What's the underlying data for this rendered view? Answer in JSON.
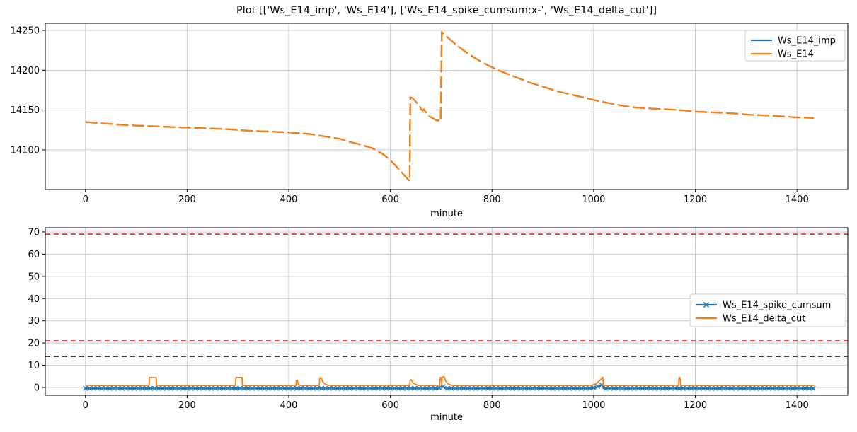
{
  "title": "Plot [['Ws_E14_imp', 'Ws_E14'], ['Ws_E14_spike_cumsum:x-', 'Ws_E14_delta_cut']]",
  "colors": {
    "blue": "#1f77b4",
    "orange": "#ff7f0e",
    "red": "#ee1111",
    "black": "#000000",
    "grid": "#cccccc",
    "spine": "#000000",
    "legend_border": "#cccccc",
    "legend_bg": "#ffffff"
  },
  "chart_data": [
    {
      "type": "line",
      "title": "",
      "xlabel": "minute",
      "ylabel": "",
      "xlim": [
        -79,
        1500
      ],
      "ylim": [
        14050.2,
        14258.9
      ],
      "xticks": [
        0,
        200,
        400,
        600,
        800,
        1000,
        1200,
        1400
      ],
      "yticks": [
        14100,
        14150,
        14200,
        14250
      ],
      "grid": true,
      "legend_position": "upper right",
      "legend": [
        {
          "label": "Ws_E14_imp",
          "color": "#1f77b4",
          "marker": null
        },
        {
          "label": "Ws_E14",
          "color": "#ff7f0e",
          "marker": null
        }
      ],
      "series": [
        {
          "name": "Ws_E14_imp",
          "color": "#1f77b4",
          "width": 2.2,
          "dash": "17 5",
          "same_as": "Ws_E14",
          "points": []
        },
        {
          "name": "Ws_E14",
          "color": "#ff7f0e",
          "width": 2.2,
          "dash": "17 5",
          "points": [
            [
              0,
              14135
            ],
            [
              40,
              14133
            ],
            [
              80,
              14131
            ],
            [
              120,
              14130
            ],
            [
              160,
              14129
            ],
            [
              200,
              14128
            ],
            [
              240,
              14127
            ],
            [
              280,
              14126
            ],
            [
              320,
              14124
            ],
            [
              360,
              14123
            ],
            [
              400,
              14122
            ],
            [
              440,
              14120
            ],
            [
              470,
              14117
            ],
            [
              500,
              14114
            ],
            [
              520,
              14110
            ],
            [
              545,
              14106
            ],
            [
              565,
              14102
            ],
            [
              585,
              14095
            ],
            [
              600,
              14087
            ],
            [
              612,
              14079
            ],
            [
              622,
              14072
            ],
            [
              630,
              14066
            ],
            [
              636,
              14062
            ],
            [
              638,
              14061
            ],
            [
              639,
              14166
            ],
            [
              643,
              14165
            ],
            [
              648,
              14162
            ],
            [
              655,
              14157
            ],
            [
              660,
              14152
            ],
            [
              663,
              14149
            ],
            [
              666,
              14151
            ],
            [
              670,
              14147
            ],
            [
              675,
              14143
            ],
            [
              680,
              14141
            ],
            [
              685,
              14139
            ],
            [
              691,
              14137
            ],
            [
              696,
              14137
            ],
            [
              699,
              14136
            ],
            [
              701,
              14248
            ],
            [
              706,
              14245
            ],
            [
              713,
              14241
            ],
            [
              722,
              14236
            ],
            [
              733,
              14230
            ],
            [
              746,
              14224
            ],
            [
              760,
              14218
            ],
            [
              775,
              14212
            ],
            [
              793,
              14206
            ],
            [
              812,
              14200
            ],
            [
              832,
              14195
            ],
            [
              852,
              14190
            ],
            [
              872,
              14185
            ],
            [
              892,
              14181
            ],
            [
              912,
              14177
            ],
            [
              932,
              14173
            ],
            [
              952,
              14170
            ],
            [
              972,
              14167
            ],
            [
              992,
              14164
            ],
            [
              1012,
              14161
            ],
            [
              1035,
              14158
            ],
            [
              1060,
              14155
            ],
            [
              1085,
              14153
            ],
            [
              1110,
              14152
            ],
            [
              1140,
              14151
            ],
            [
              1170,
              14150
            ],
            [
              1200,
              14148
            ],
            [
              1235,
              14147
            ],
            [
              1270,
              14146
            ],
            [
              1310,
              14144
            ],
            [
              1350,
              14143
            ],
            [
              1395,
              14141
            ],
            [
              1433,
              14140
            ]
          ]
        }
      ]
    },
    {
      "type": "line",
      "title": "",
      "xlabel": "minute",
      "ylabel": "",
      "xlim": [
        -79,
        1500
      ],
      "ylim": [
        -3.5,
        71.9
      ],
      "xticks": [
        0,
        200,
        400,
        600,
        800,
        1000,
        1200,
        1400
      ],
      "yticks": [
        0,
        10,
        20,
        30,
        40,
        50,
        60,
        70
      ],
      "grid": true,
      "legend_position": "center right",
      "legend": [
        {
          "label": "Ws_E14_spike_cumsum",
          "color": "#1f77b4",
          "marker": "x"
        },
        {
          "label": "Ws_E14_delta_cut",
          "color": "#ff7f0e",
          "marker": null
        }
      ],
      "hlines": [
        {
          "y": 69,
          "color": "#ee1111",
          "dash": "7 5",
          "width": 1.6
        },
        {
          "y": 21,
          "color": "#ee1111",
          "dash": "7 5",
          "width": 1.6
        },
        {
          "y": 14,
          "color": "#000000",
          "dash": "7 5",
          "width": 1.6
        }
      ],
      "series": [
        {
          "name": "Ws_E14_spike_cumsum",
          "color": "#1f77b4",
          "width": 2.2,
          "marker": "x",
          "marker_every": 8,
          "marker_size": 3,
          "points": [
            [
              0,
              -0.4
            ],
            [
              695,
              -0.4
            ],
            [
              699,
              0.4
            ],
            [
              704,
              0.4
            ],
            [
              708,
              -0.4
            ],
            [
              994,
              -0.4
            ],
            [
              1003,
              0.0
            ],
            [
              1010,
              0.6
            ],
            [
              1016,
              1.2
            ],
            [
              1018,
              1.3
            ],
            [
              1019,
              -0.4
            ],
            [
              1434,
              -0.4
            ]
          ]
        },
        {
          "name": "Ws_E14_delta_cut",
          "color": "#ff7f0e",
          "width": 1.8,
          "points": [
            [
              0,
              0.9
            ],
            [
              125,
              0.9
            ],
            [
              126,
              4.5
            ],
            [
              139,
              4.5
            ],
            [
              140,
              0.9
            ],
            [
              295,
              0.9
            ],
            [
              296,
              4.5
            ],
            [
              308,
              4.5
            ],
            [
              309,
              0.9
            ],
            [
              414,
              0.9
            ],
            [
              415,
              3.2
            ],
            [
              417,
              3.2
            ],
            [
              419,
              1.4
            ],
            [
              422,
              0.9
            ],
            [
              460,
              0.9
            ],
            [
              461,
              4.3
            ],
            [
              464,
              4.3
            ],
            [
              467,
              2.5
            ],
            [
              472,
              1.5
            ],
            [
              478,
              1.0
            ],
            [
              483,
              0.9
            ],
            [
              638,
              0.9
            ],
            [
              639,
              3.5
            ],
            [
              641,
              3.5
            ],
            [
              645,
              2.0
            ],
            [
              650,
              1.3
            ],
            [
              656,
              0.9
            ],
            [
              697,
              0.9
            ],
            [
              698,
              4.5
            ],
            [
              700,
              4.5
            ],
            [
              701,
              1.4
            ],
            [
              702,
              4.7
            ],
            [
              706,
              4.7
            ],
            [
              709,
              2.8
            ],
            [
              713,
              1.7
            ],
            [
              719,
              1.1
            ],
            [
              725,
              0.9
            ],
            [
              995,
              0.9
            ],
            [
              1002,
              1.4
            ],
            [
              1008,
              2.3
            ],
            [
              1013,
              3.4
            ],
            [
              1017,
              4.5
            ],
            [
              1018,
              4.6
            ],
            [
              1019,
              0.9
            ],
            [
              1167,
              0.9
            ],
            [
              1168,
              4.5
            ],
            [
              1170,
              4.5
            ],
            [
              1171,
              0.9
            ],
            [
              1434,
              0.9
            ]
          ]
        }
      ]
    }
  ]
}
